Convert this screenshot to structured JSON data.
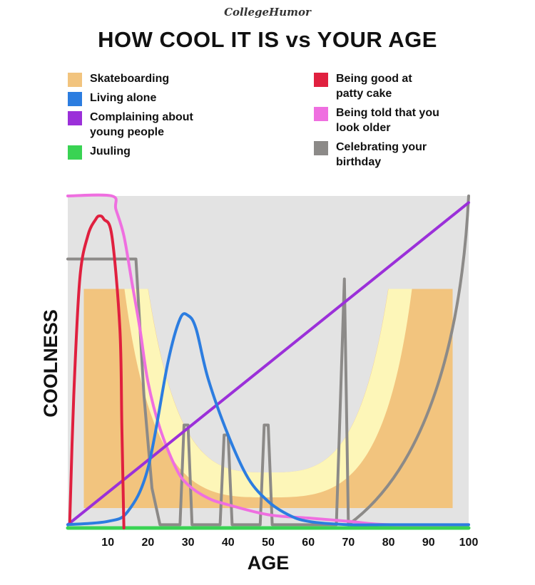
{
  "brand": "CollegeHumor",
  "chart_data": {
    "type": "line",
    "title": "HOW COOL IT IS vs YOUR AGE",
    "xlabel": "AGE",
    "ylabel": "COOLNESS",
    "xlim": [
      0,
      100
    ],
    "ylim": [
      0,
      100
    ],
    "x_ticks": [
      10,
      20,
      30,
      40,
      50,
      60,
      70,
      80,
      90,
      100
    ],
    "legend_left": [
      "Skateboarding",
      "Living alone",
      "Complaining about young people",
      "Juuling"
    ],
    "legend_right": [
      "Being good at patty cake",
      "Being told that you look older",
      "Celebrating your birthday"
    ],
    "series": [
      {
        "name": "Skateboarding",
        "color": "#f2c47e",
        "style": "halfpipe",
        "x": [
          4,
          96
        ],
        "y": [
          72,
          6
        ]
      },
      {
        "name": "Living alone",
        "color": "#2c7de0",
        "x": [
          0,
          10,
          15,
          20,
          25,
          28,
          30,
          32,
          35,
          40,
          45,
          50,
          55,
          60,
          70,
          80,
          100
        ],
        "y": [
          1,
          2,
          5,
          18,
          50,
          63,
          64,
          60,
          45,
          28,
          15,
          8,
          4,
          2,
          1,
          1,
          1
        ]
      },
      {
        "name": "Complaining about young people",
        "color": "#9b30d9",
        "x": [
          0,
          100
        ],
        "y": [
          1,
          98
        ]
      },
      {
        "name": "Juuling",
        "color": "#39d353",
        "x": [
          0,
          100
        ],
        "y": [
          0,
          0
        ]
      },
      {
        "name": "Being good at patty cake",
        "color": "#e0203f",
        "x": [
          0.5,
          1.5,
          3,
          5,
          7,
          8,
          9,
          11,
          13,
          13.5,
          14
        ],
        "y": [
          2,
          40,
          75,
          88,
          93,
          94,
          93,
          88,
          60,
          30,
          0
        ]
      },
      {
        "name": "Being told that you look older",
        "color": "#ef6fe0",
        "x": [
          0,
          11,
          12,
          14,
          16,
          18,
          20,
          23,
          27,
          30,
          35,
          40,
          50,
          60,
          70,
          80,
          100
        ],
        "y": [
          100,
          100,
          96,
          88,
          74,
          60,
          44,
          30,
          18,
          13,
          9,
          7,
          4,
          3,
          2,
          1,
          1
        ]
      },
      {
        "name": "Celebrating your birthday",
        "color": "#8c8a88",
        "x": [
          0,
          17,
          19,
          21,
          23,
          28,
          29,
          30,
          31,
          38,
          39,
          40,
          41,
          48,
          49,
          50,
          51,
          67,
          69,
          70,
          100
        ],
        "y": [
          81,
          81,
          40,
          12,
          1,
          1,
          31,
          31,
          1,
          1,
          28,
          28,
          1,
          1,
          31,
          31,
          1,
          1,
          75,
          75,
          100
        ]
      }
    ]
  }
}
